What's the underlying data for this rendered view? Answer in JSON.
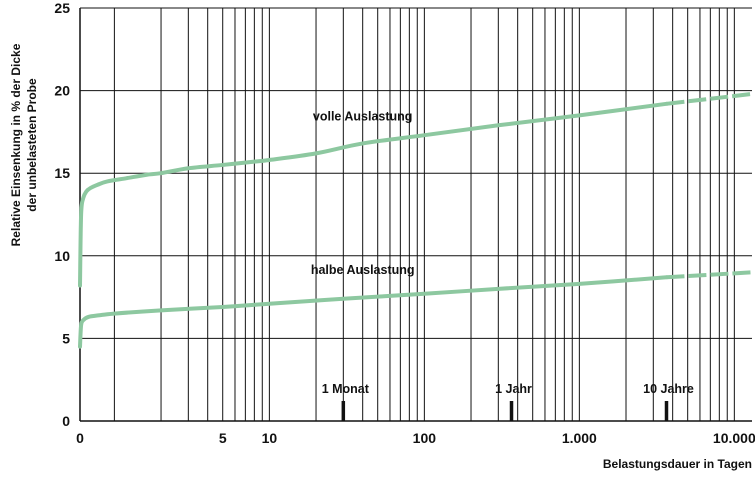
{
  "chart_data": {
    "type": "line",
    "title": "",
    "xlabel": "Belastungsdauer in Tagen",
    "ylabel_line1": "Relative Einsenkung in % der Dicke",
    "ylabel_line2": "der unbelasteten Probe",
    "x_scale": "log",
    "xlim": [
      0.6,
      13000
    ],
    "ylim": [
      0,
      25
    ],
    "grid": true,
    "line_color": "#8dc8a0",
    "x_ticks": [
      {
        "value": 0.6,
        "label": "0"
      },
      {
        "value": 5,
        "label": "5"
      },
      {
        "value": 10,
        "label": "10"
      },
      {
        "value": 100,
        "label": "100"
      },
      {
        "value": 1000,
        "label": "1.000"
      },
      {
        "value": 10000,
        "label": "10.000"
      }
    ],
    "y_ticks": [
      {
        "value": 0,
        "label": "0"
      },
      {
        "value": 5,
        "label": "5"
      },
      {
        "value": 10,
        "label": "10"
      },
      {
        "value": 15,
        "label": "15"
      },
      {
        "value": 20,
        "label": "20"
      },
      {
        "value": 25,
        "label": "25"
      }
    ],
    "annotations": [
      {
        "value": 30,
        "label": "1 Monat"
      },
      {
        "value": 365,
        "label": "1 Jahr"
      },
      {
        "value": 3650,
        "label": "10 Jahre"
      }
    ],
    "series": [
      {
        "name": "volle Auslastung",
        "label_x": 40,
        "label_y": 18.2,
        "solid_until": 3650,
        "points": [
          [
            0.6,
            8.2
          ],
          [
            0.61,
            12.5
          ],
          [
            0.63,
            13.5
          ],
          [
            0.66,
            13.9
          ],
          [
            0.7,
            14.1
          ],
          [
            0.78,
            14.3
          ],
          [
            0.9,
            14.5
          ],
          [
            1.2,
            14.7
          ],
          [
            1.6,
            14.9
          ],
          [
            2,
            15.0
          ],
          [
            3,
            15.3
          ],
          [
            5,
            15.5
          ],
          [
            8,
            15.7
          ],
          [
            10,
            15.8
          ],
          [
            20,
            16.2
          ],
          [
            40,
            16.8
          ],
          [
            100,
            17.3
          ],
          [
            300,
            17.9
          ],
          [
            1000,
            18.5
          ],
          [
            3650,
            19.2
          ],
          [
            13000,
            19.8
          ]
        ]
      },
      {
        "name": "halbe Auslastung",
        "label_x": 40,
        "label_y": 8.9,
        "solid_until": 3650,
        "points": [
          [
            0.6,
            4.5
          ],
          [
            0.61,
            5.8
          ],
          [
            0.63,
            6.1
          ],
          [
            0.68,
            6.3
          ],
          [
            0.8,
            6.4
          ],
          [
            1,
            6.5
          ],
          [
            2,
            6.7
          ],
          [
            5,
            6.9
          ],
          [
            10,
            7.1
          ],
          [
            30,
            7.4
          ],
          [
            100,
            7.7
          ],
          [
            300,
            8.0
          ],
          [
            1000,
            8.3
          ],
          [
            3650,
            8.7
          ],
          [
            13000,
            9.0
          ]
        ]
      }
    ]
  }
}
